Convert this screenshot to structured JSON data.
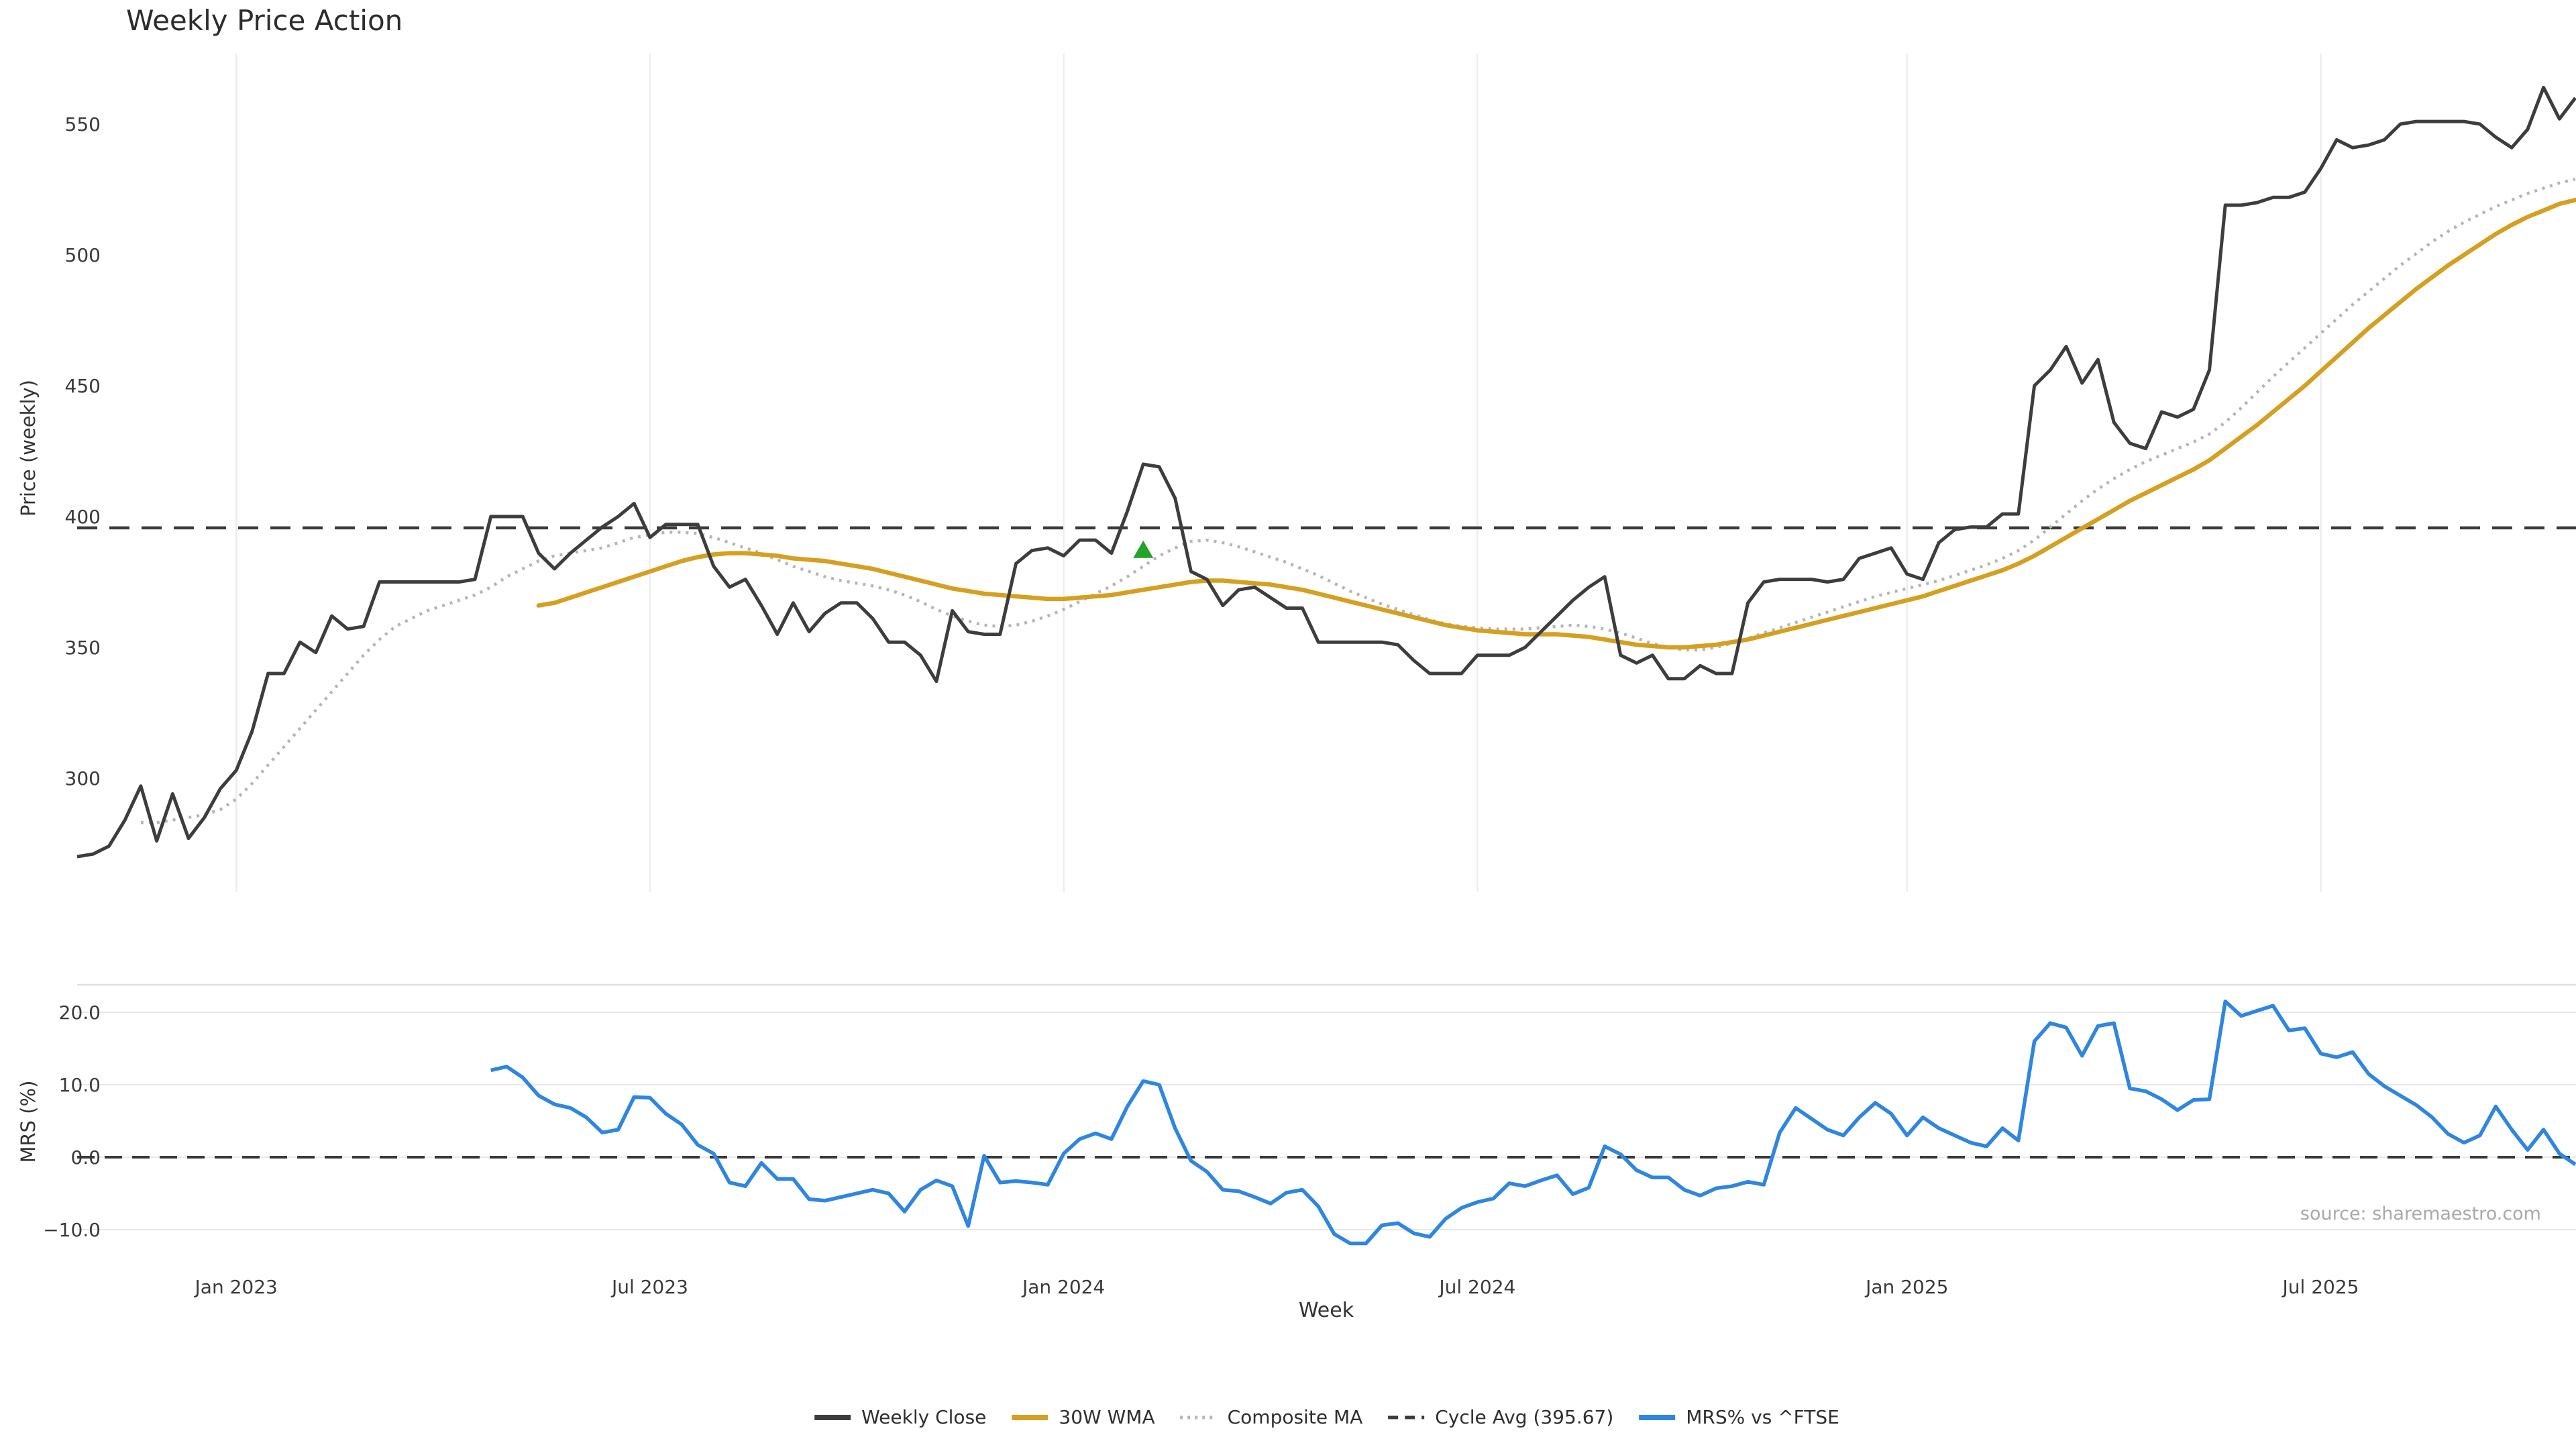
{
  "title": "Weekly Price Action",
  "source_note": "source: sharemaestro.com",
  "colors": {
    "weekly_close": "#3d3d3d",
    "wma_30w": "#d5a021",
    "composite_ma": "#b5b5b5",
    "cycle_avg": "#3a3a3a",
    "mrs": "#2e86e0",
    "signal_marker": "#22a329",
    "grid_vertical": "#ededed",
    "grid_horizontal": "#e8e8e8",
    "panel_border": "#e0e0e0",
    "tick_text": "#3a3a3a"
  },
  "legend": {
    "position": "bottom-center",
    "items": [
      {
        "label": "Weekly Close",
        "style": "solid",
        "color_key": "weekly_close"
      },
      {
        "label": "30W WMA",
        "style": "solid",
        "color_key": "wma_30w"
      },
      {
        "label": "Composite MA",
        "style": "dotted",
        "color_key": "composite_ma"
      },
      {
        "label": "Cycle Avg (395.67)",
        "style": "dashed",
        "color_key": "cycle_avg"
      },
      {
        "label": "MRS% vs ^FTSE",
        "style": "solid",
        "color_key": "mrs"
      }
    ]
  },
  "x_axis": {
    "start_date": "2022-10-24",
    "step": "1 week",
    "n_points": 158,
    "tick_weeks": [
      10,
      36,
      62,
      88,
      115,
      141
    ],
    "tick_labels": [
      "Jan 2023",
      "Jul 2023",
      "Jan 2024",
      "Jul 2024",
      "Jan 2025",
      "Jul 2025"
    ]
  },
  "chart_data": [
    {
      "type": "line",
      "panel": "top",
      "xlabel": "",
      "ylabel": "Price (weekly)",
      "ylim": [
        258,
        572
      ],
      "grid": "vertical-only",
      "yticks": {
        "values": [
          550,
          500,
          450,
          400,
          350,
          300
        ],
        "labels": [
          "550",
          "500",
          "450",
          "400",
          "350",
          "300"
        ]
      },
      "cycle_avg": {
        "value": 395.67,
        "style": "dashed"
      },
      "signal_marker": {
        "week_index": 67,
        "value": 387,
        "shape": "triangle-up"
      },
      "series": [
        {
          "name": "Weekly Close",
          "values": [
            270,
            271,
            274,
            284,
            297,
            276,
            294,
            277,
            285,
            296,
            303,
            318,
            340,
            340,
            352,
            348,
            362,
            357,
            358,
            375,
            375,
            375,
            375,
            375,
            375,
            376,
            400,
            400,
            400,
            386,
            380,
            386,
            391,
            396,
            400,
            405,
            392,
            397,
            397,
            397,
            381,
            373,
            376,
            366,
            355,
            367,
            356,
            363,
            367,
            367,
            361,
            352,
            352,
            347,
            337,
            364,
            356,
            355,
            355,
            382,
            387,
            388,
            385,
            391,
            391,
            386,
            402,
            420,
            419,
            407,
            379,
            376,
            366,
            372,
            373,
            369,
            365,
            365,
            352,
            352,
            352,
            352,
            352,
            351,
            345,
            340,
            340,
            340,
            347,
            347,
            347,
            350,
            356,
            362,
            368,
            373,
            377,
            347,
            344,
            347,
            338,
            338,
            343,
            340,
            340,
            367,
            375,
            376,
            376,
            376,
            375,
            376,
            384,
            386,
            388,
            378,
            376,
            390,
            395,
            396,
            396,
            401,
            401,
            450,
            456,
            465,
            451,
            460,
            436,
            428,
            426,
            440,
            438,
            441,
            456,
            519,
            519,
            520,
            522,
            522,
            524,
            533,
            544,
            541,
            542,
            544,
            550,
            551,
            551,
            551,
            551,
            550,
            545,
            541,
            548,
            564,
            552,
            560
          ]
        },
        {
          "name": "30W WMA",
          "values": [
            null,
            null,
            null,
            null,
            null,
            null,
            null,
            null,
            null,
            null,
            null,
            null,
            null,
            null,
            null,
            null,
            null,
            null,
            null,
            null,
            null,
            null,
            null,
            null,
            null,
            null,
            null,
            null,
            null,
            366,
            367,
            369,
            371,
            373,
            375,
            377,
            379,
            381,
            383,
            384.5,
            385.5,
            386,
            386,
            385.5,
            385,
            384,
            383.5,
            383,
            382,
            381,
            380,
            378.5,
            377,
            375.5,
            374,
            372.5,
            371.5,
            370.5,
            370,
            369.5,
            369,
            368.5,
            368.5,
            369,
            369.5,
            370,
            371,
            372,
            373,
            374,
            375,
            375.5,
            375.5,
            375,
            374.5,
            374,
            373,
            372,
            370.5,
            369,
            367.5,
            366,
            364.5,
            363,
            361.5,
            360,
            358.5,
            357.5,
            356.5,
            356,
            355.5,
            355,
            355,
            355,
            354.5,
            354,
            353,
            352,
            351,
            350.5,
            350,
            350,
            350.5,
            351,
            352,
            353,
            354.5,
            356,
            357.5,
            359,
            360.5,
            362,
            363.5,
            365,
            366.5,
            368,
            369.5,
            371.5,
            373.5,
            375.5,
            377.5,
            379.5,
            382,
            385,
            388.5,
            392,
            395.5,
            399,
            402.5,
            406,
            409,
            412,
            415,
            418,
            421.5,
            426,
            430.5,
            435,
            440,
            445,
            450,
            455.5,
            461,
            466.5,
            472,
            477,
            482,
            487,
            491.5,
            496,
            500,
            504,
            508,
            511.5,
            514.5,
            517,
            519.5,
            521
          ]
        },
        {
          "name": "Composite MA",
          "values": [
            null,
            null,
            null,
            null,
            283,
            283,
            284,
            285,
            286,
            288,
            292,
            298,
            305,
            312,
            319,
            326,
            333,
            340,
            347,
            353,
            358,
            361,
            364,
            366,
            368,
            370,
            373,
            377,
            380,
            383,
            385,
            386,
            387,
            388,
            390,
            392,
            393,
            394,
            394,
            393.5,
            392,
            390,
            388,
            386,
            383.5,
            381,
            379,
            377,
            375.5,
            374.5,
            373.5,
            372,
            370,
            367.5,
            364.5,
            362,
            360,
            358.5,
            358,
            358.5,
            360,
            362,
            364.5,
            367.5,
            370.5,
            373.5,
            377,
            381,
            385,
            388,
            390.5,
            391,
            390,
            388.5,
            386.5,
            384.5,
            382.5,
            380,
            377.5,
            374.5,
            371.5,
            369,
            366.5,
            364.5,
            362.5,
            360.5,
            359,
            358,
            357.5,
            357,
            357,
            357,
            357.5,
            358,
            358.5,
            358,
            357,
            355.5,
            353.5,
            351.5,
            350,
            349,
            349,
            350,
            351.5,
            353.5,
            355.5,
            357.5,
            359.5,
            361.5,
            363.5,
            365.5,
            367.5,
            369.5,
            371,
            372.5,
            374,
            375.5,
            377.5,
            379.5,
            381.5,
            384,
            387,
            391,
            396,
            401,
            406,
            410.5,
            414.5,
            418,
            421,
            423.5,
            426,
            428.5,
            431.5,
            436,
            441.5,
            447.5,
            453.5,
            459,
            464.5,
            470,
            475.5,
            481,
            486,
            491,
            496,
            500.5,
            505,
            509,
            512.5,
            515.5,
            518.5,
            521,
            523.5,
            525.5,
            527.5,
            529
          ]
        }
      ]
    },
    {
      "type": "line",
      "panel": "bottom",
      "xlabel": "Week",
      "ylabel": "MRS (%)",
      "ylim": [
        -14.5,
        23.8
      ],
      "grid": "horizontal-only",
      "yticks": {
        "values": [
          20,
          10,
          0,
          -10
        ],
        "labels": [
          "20.0",
          "10.0",
          "0.0",
          "−10.0"
        ]
      },
      "zero_line": {
        "value": 0.0,
        "style": "dashed"
      },
      "series": [
        {
          "name": "MRS% vs ^FTSE",
          "values": [
            null,
            null,
            null,
            null,
            null,
            null,
            null,
            null,
            null,
            null,
            null,
            null,
            null,
            null,
            null,
            null,
            null,
            null,
            null,
            null,
            null,
            null,
            null,
            null,
            null,
            null,
            12.0,
            12.5,
            11.0,
            8.5,
            7.3,
            6.8,
            5.5,
            3.4,
            3.8,
            8.3,
            8.2,
            6.0,
            4.5,
            1.7,
            0.5,
            -3.5,
            -4.0,
            -0.8,
            -3.0,
            -3.0,
            -5.8,
            -6.0,
            -5.5,
            -5.0,
            -4.5,
            -5.0,
            -7.5,
            -4.5,
            -3.2,
            -4.0,
            -9.5,
            0.2,
            -3.5,
            -3.3,
            -3.5,
            -3.8,
            0.5,
            2.5,
            3.3,
            2.5,
            7.0,
            10.5,
            10.0,
            4.0,
            -0.5,
            -2.0,
            -4.5,
            -4.7,
            -5.5,
            -6.4,
            -4.9,
            -4.5,
            -6.8,
            -10.6,
            -11.9,
            -11.9,
            -9.4,
            -9.1,
            -10.5,
            -11.0,
            -8.5,
            -7.0,
            -6.2,
            -5.7,
            -3.6,
            -4.0,
            -3.2,
            -2.5,
            -5.1,
            -4.2,
            1.5,
            0.4,
            -1.8,
            -2.8,
            -2.8,
            -4.5,
            -5.3,
            -4.3,
            -4.0,
            -3.4,
            -3.8,
            3.4,
            6.8,
            5.3,
            3.8,
            3.0,
            5.5,
            7.5,
            6.0,
            3.0,
            5.5,
            4.0,
            3.0,
            2.0,
            1.5,
            4.0,
            2.3,
            16.0,
            18.5,
            17.9,
            14.0,
            18.1,
            18.5,
            9.5,
            9.1,
            8.0,
            6.5,
            7.9,
            8.0,
            21.5,
            19.5,
            20.2,
            20.9,
            17.5,
            17.8,
            14.3,
            13.8,
            14.5,
            11.5,
            9.8,
            8.5,
            7.2,
            5.5,
            3.2,
            2.0,
            3.0,
            7.0,
            3.8,
            1.0,
            3.8,
            0.5,
            -1.0
          ]
        }
      ]
    }
  ]
}
